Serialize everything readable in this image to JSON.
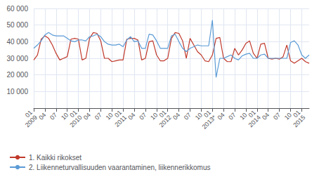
{
  "chart_data": {
    "type": "line",
    "categories": [
      "01\n2009",
      null,
      null,
      "04",
      null,
      null,
      "07",
      null,
      null,
      "10",
      null,
      null,
      "01\n2010",
      null,
      null,
      "04",
      null,
      null,
      "07",
      null,
      null,
      "10",
      null,
      null,
      "01\n2011",
      null,
      null,
      "04",
      null,
      null,
      "07",
      null,
      null,
      "10",
      null,
      null,
      "01\n2012",
      null,
      null,
      "04",
      null,
      null,
      "07",
      null,
      null,
      "10",
      null,
      null,
      "01\n2013*",
      null,
      null,
      "04",
      null,
      null,
      "07",
      null,
      null,
      "10",
      null,
      null,
      "01\n2014",
      null,
      null,
      "04",
      null,
      null,
      "07",
      null,
      null,
      "10",
      null,
      null,
      "01\n2015",
      null,
      null
    ],
    "series": [
      {
        "name": "1. Kaikki rikokset",
        "color": "#c0392b",
        "values": [
          29000,
          32000,
          41500,
          43500,
          42000,
          38000,
          33000,
          29000,
          30000,
          31000,
          41500,
          42000,
          41500,
          29000,
          30000,
          42000,
          45500,
          45000,
          40500,
          30000,
          30000,
          28000,
          28500,
          29000,
          29000,
          41500,
          42000,
          42000,
          41000,
          29000,
          30000,
          40000,
          40500,
          32000,
          28500,
          28500,
          30000,
          42000,
          45500,
          45000,
          40500,
          30000,
          42000,
          38000,
          34000,
          32000,
          28500,
          28000,
          32000,
          42000,
          42500,
          30000,
          28000,
          28000,
          36000,
          32000,
          35000,
          39000,
          40500,
          33000,
          30000,
          38500,
          39000,
          30000,
          29500,
          30000,
          29500,
          31000,
          38000,
          28500,
          27000,
          28500,
          30000,
          28000,
          27000
        ]
      },
      {
        "name": "2. Liikenneturvallisuuden vaarantaminen, liikennerikkomus",
        "color": "#5b9bd5",
        "values": [
          36000,
          38000,
          40500,
          44000,
          45500,
          44000,
          43500,
          43500,
          43500,
          42000,
          40500,
          40000,
          41000,
          41000,
          40500,
          43000,
          43500,
          44500,
          43000,
          40000,
          38500,
          38000,
          38000,
          38500,
          37000,
          41000,
          43000,
          40000,
          40500,
          36000,
          36000,
          44500,
          44000,
          40500,
          36000,
          36000,
          36000,
          43500,
          44500,
          40000,
          36000,
          34000,
          36000,
          37000,
          38000,
          37500,
          37500,
          37500,
          53000,
          18500,
          30000,
          30000,
          31000,
          32000,
          30000,
          29000,
          31500,
          32500,
          33000,
          30000,
          30000,
          32000,
          32500,
          30000,
          30000,
          30000,
          30000,
          30000,
          30000,
          39500,
          40500,
          38000,
          32000,
          30000,
          32000
        ]
      }
    ],
    "ylim": [
      0,
      60000
    ],
    "yticks": [
      {
        "value": 0,
        "label": ""
      },
      {
        "value": 10000,
        "label": "10 000"
      },
      {
        "value": 20000,
        "label": "20 000"
      },
      {
        "value": 30000,
        "label": "30 000"
      },
      {
        "value": 40000,
        "label": "40 000"
      },
      {
        "value": 50000,
        "label": "50 000"
      },
      {
        "value": 60000,
        "label": "60 000"
      }
    ],
    "grid": true,
    "legend": "lower left"
  }
}
